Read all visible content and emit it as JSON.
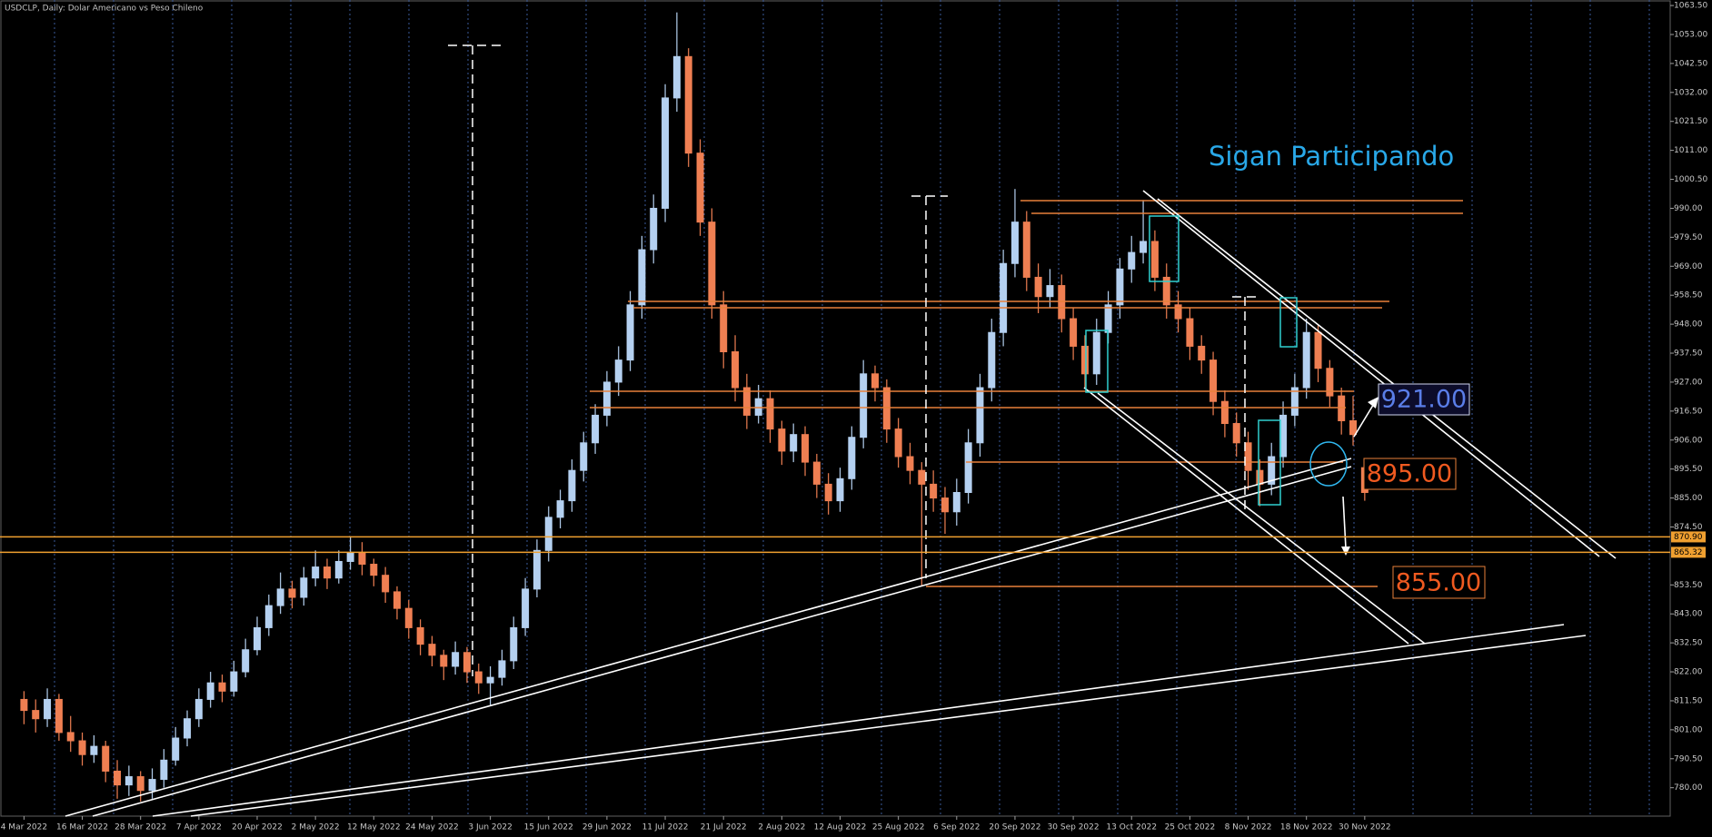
{
  "chart_data": {
    "type": "candlestick",
    "title": "USDCLP, Daily:  Dolar Americano vs Peso Chileno",
    "categories": [
      "4 Mar 2022",
      null,
      null,
      null,
      null,
      "16 Mar 2022",
      null,
      null,
      null,
      null,
      "28 Mar 2022",
      null,
      null,
      null,
      null,
      "7 Apr 2022",
      null,
      null,
      null,
      null,
      "20 Apr 2022",
      null,
      null,
      null,
      null,
      "2 May 2022",
      null,
      null,
      null,
      null,
      "12 May 2022",
      null,
      null,
      null,
      null,
      "24 May 2022",
      null,
      null,
      null,
      null,
      "3 Jun 2022",
      null,
      null,
      null,
      null,
      "15 Jun 2022",
      null,
      null,
      null,
      null,
      "29 Jun 2022",
      null,
      null,
      null,
      null,
      "11 Jul 2022",
      null,
      null,
      null,
      null,
      "21 Jul 2022",
      null,
      null,
      null,
      null,
      "2 Aug 2022",
      null,
      null,
      null,
      null,
      "12 Aug 2022",
      null,
      null,
      null,
      null,
      "25 Aug 2022",
      null,
      null,
      null,
      null,
      "6 Sep 2022",
      null,
      null,
      null,
      null,
      "20 Sep 2022",
      null,
      null,
      null,
      null,
      "30 Sep 2022",
      null,
      null,
      null,
      null,
      "13 Oct 2022",
      null,
      null,
      null,
      null,
      "25 Oct 2022",
      null,
      null,
      null,
      null,
      "8 Nov 2022",
      null,
      null,
      null,
      null,
      "18 Nov 2022",
      null,
      null,
      null,
      null,
      "30 Nov 2022"
    ],
    "ohlc": [
      [
        812,
        815,
        803,
        808
      ],
      [
        808,
        812,
        800,
        805
      ],
      [
        805,
        816,
        802,
        812
      ],
      [
        812,
        814,
        797,
        800
      ],
      [
        800,
        806,
        793,
        797
      ],
      [
        797,
        800,
        788,
        792
      ],
      [
        792,
        799,
        789,
        795
      ],
      [
        795,
        797,
        782,
        786
      ],
      [
        786,
        790,
        776,
        781
      ],
      [
        781,
        788,
        777,
        784
      ],
      [
        784,
        786,
        775,
        779
      ],
      [
        779,
        787,
        776,
        783
      ],
      [
        783,
        794,
        780,
        790
      ],
      [
        790,
        802,
        788,
        798
      ],
      [
        798,
        808,
        795,
        805
      ],
      [
        805,
        816,
        802,
        812
      ],
      [
        812,
        822,
        809,
        818
      ],
      [
        818,
        821,
        811,
        815
      ],
      [
        815,
        826,
        813,
        822
      ],
      [
        822,
        834,
        820,
        830
      ],
      [
        830,
        842,
        828,
        838
      ],
      [
        838,
        850,
        835,
        846
      ],
      [
        846,
        858,
        843,
        852
      ],
      [
        852,
        855,
        845,
        849
      ],
      [
        849,
        860,
        846,
        856
      ],
      [
        856,
        866,
        853,
        860
      ],
      [
        860,
        863,
        852,
        856
      ],
      [
        856,
        866,
        854,
        862
      ],
      [
        862,
        871,
        859,
        865
      ],
      [
        865,
        869,
        857,
        861
      ],
      [
        861,
        863,
        853,
        857
      ],
      [
        857,
        860,
        847,
        851
      ],
      [
        851,
        853,
        841,
        845
      ],
      [
        845,
        848,
        834,
        838
      ],
      [
        838,
        841,
        828,
        832
      ],
      [
        832,
        835,
        824,
        828
      ],
      [
        828,
        830,
        819,
        824
      ],
      [
        824,
        833,
        821,
        829
      ],
      [
        829,
        831,
        818,
        822
      ],
      [
        822,
        825,
        814,
        818
      ],
      [
        818,
        824,
        810,
        820
      ],
      [
        820,
        830,
        817,
        826
      ],
      [
        826,
        842,
        823,
        838
      ],
      [
        838,
        856,
        835,
        852
      ],
      [
        852,
        870,
        849,
        866
      ],
      [
        866,
        882,
        862,
        878
      ],
      [
        878,
        888,
        874,
        884
      ],
      [
        884,
        899,
        880,
        895
      ],
      [
        895,
        909,
        891,
        905
      ],
      [
        905,
        919,
        901,
        915
      ],
      [
        915,
        931,
        911,
        927
      ],
      [
        927,
        940,
        922,
        935
      ],
      [
        935,
        960,
        931,
        955
      ],
      [
        955,
        980,
        950,
        975
      ],
      [
        975,
        995,
        970,
        990
      ],
      [
        990,
        1035,
        985,
        1030
      ],
      [
        1030,
        1061,
        1025,
        1045
      ],
      [
        1045,
        1048,
        1005,
        1010
      ],
      [
        1010,
        1015,
        980,
        985
      ],
      [
        985,
        990,
        950,
        955
      ],
      [
        955,
        960,
        932,
        938
      ],
      [
        938,
        944,
        920,
        925
      ],
      [
        925,
        930,
        910,
        915
      ],
      [
        915,
        926,
        912,
        921
      ],
      [
        921,
        924,
        905,
        910
      ],
      [
        910,
        913,
        897,
        902
      ],
      [
        902,
        912,
        898,
        908
      ],
      [
        908,
        911,
        893,
        898
      ],
      [
        898,
        901,
        885,
        890
      ],
      [
        890,
        894,
        879,
        884
      ],
      [
        884,
        896,
        880,
        892
      ],
      [
        892,
        911,
        888,
        907
      ],
      [
        907,
        935,
        903,
        930
      ],
      [
        930,
        933,
        920,
        925
      ],
      [
        925,
        928,
        905,
        910
      ],
      [
        910,
        914,
        896,
        900
      ],
      [
        900,
        905,
        890,
        895
      ],
      [
        895,
        898,
        853,
        890
      ],
      [
        890,
        895,
        880,
        885
      ],
      [
        885,
        889,
        872,
        880
      ],
      [
        880,
        892,
        875,
        887
      ],
      [
        887,
        910,
        883,
        905
      ],
      [
        905,
        930,
        900,
        925
      ],
      [
        925,
        950,
        920,
        945
      ],
      [
        945,
        975,
        940,
        970
      ],
      [
        970,
        997,
        965,
        985
      ],
      [
        985,
        989,
        960,
        965
      ],
      [
        965,
        970,
        952,
        958
      ],
      [
        958,
        968,
        954,
        962
      ],
      [
        962,
        966,
        945,
        950
      ],
      [
        950,
        954,
        935,
        940
      ],
      [
        940,
        944,
        925,
        930
      ],
      [
        930,
        950,
        926,
        945
      ],
      [
        945,
        960,
        941,
        955
      ],
      [
        955,
        972,
        950,
        968
      ],
      [
        968,
        980,
        963,
        974
      ],
      [
        974,
        993,
        970,
        978
      ],
      [
        978,
        982,
        960,
        965
      ],
      [
        965,
        970,
        950,
        955
      ],
      [
        955,
        960,
        945,
        950
      ],
      [
        950,
        954,
        935,
        940
      ],
      [
        940,
        944,
        930,
        935
      ],
      [
        935,
        938,
        915,
        920
      ],
      [
        920,
        924,
        907,
        912
      ],
      [
        912,
        916,
        900,
        905
      ],
      [
        905,
        909,
        888,
        895
      ],
      [
        895,
        899,
        882,
        890
      ],
      [
        890,
        905,
        886,
        900
      ],
      [
        900,
        920,
        896,
        915
      ],
      [
        915,
        930,
        911,
        925
      ],
      [
        925,
        950,
        921,
        945
      ],
      [
        945,
        948,
        927,
        932
      ],
      [
        932,
        935,
        918,
        922
      ],
      [
        922,
        925,
        908,
        913
      ],
      [
        913,
        922,
        904,
        908
      ],
      [
        896,
        898,
        884,
        887
      ]
    ],
    "up_color": "#b4d0f0",
    "down_color": "#ef7f52",
    "ylim": [
      769.7,
      1065.5
    ],
    "yticks": [
      {
        "value": 1063.5,
        "label": "1063.50"
      },
      {
        "value": 1053,
        "label": "1053.00"
      },
      {
        "value": 1042.5,
        "label": "1042.50"
      },
      {
        "value": 1032,
        "label": "1032.00"
      },
      {
        "value": 1021.5,
        "label": "1021.50"
      },
      {
        "value": 1011,
        "label": "1011.00"
      },
      {
        "value": 1000.5,
        "label": "1000.50"
      },
      {
        "value": 990,
        "label": "990.00"
      },
      {
        "value": 979.5,
        "label": "979.50"
      },
      {
        "value": 969,
        "label": "969.00"
      },
      {
        "value": 958.5,
        "label": "958.50"
      },
      {
        "value": 948,
        "label": "948.00"
      },
      {
        "value": 937.5,
        "label": "937.50"
      },
      {
        "value": 927,
        "label": "927.00"
      },
      {
        "value": 916.5,
        "label": "916.50"
      },
      {
        "value": 906,
        "label": "906.00"
      },
      {
        "value": 895.5,
        "label": "895.50"
      },
      {
        "value": 885,
        "label": "885.00"
      },
      {
        "value": 874.5,
        "label": "874.50"
      },
      {
        "value": 853.5,
        "label": "853.50"
      },
      {
        "value": 843,
        "label": "843.00"
      },
      {
        "value": 832.5,
        "label": "832.50"
      },
      {
        "value": 822,
        "label": "822.00"
      },
      {
        "value": 811.5,
        "label": "811.50"
      },
      {
        "value": 801,
        "label": "801.00"
      },
      {
        "value": 790.5,
        "label": "790.50"
      },
      {
        "value": 780,
        "label": "780.00"
      }
    ],
    "price_tags": [
      {
        "value": 870.9,
        "label": "870.90"
      },
      {
        "value": 865.32,
        "label": "865.32"
      }
    ],
    "tag_color": "#f0a030",
    "annotations": [
      "Sigan Participando",
      "921.00",
      "895.00",
      "855.00"
    ]
  }
}
